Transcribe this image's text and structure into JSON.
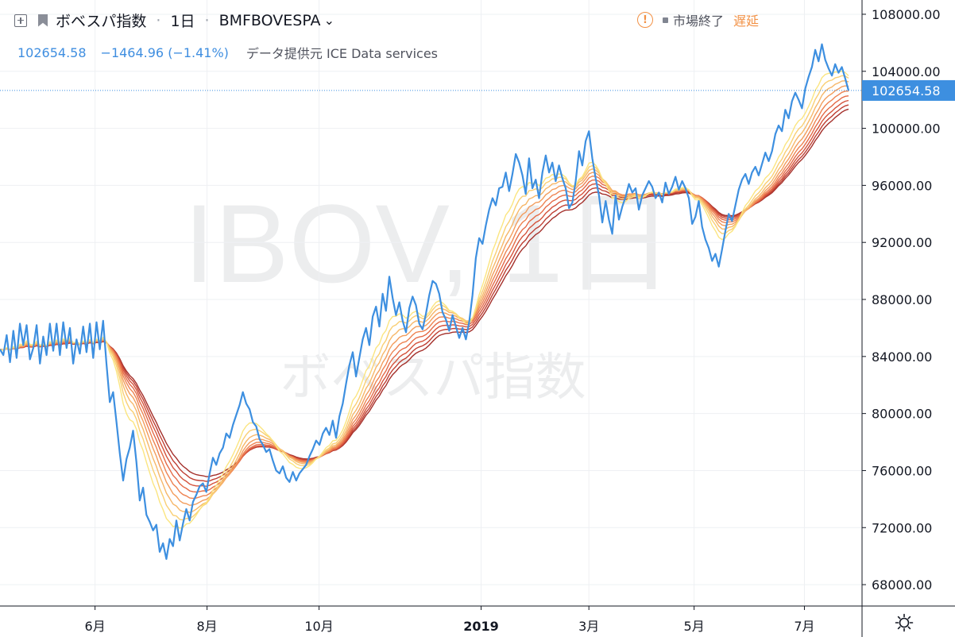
{
  "header": {
    "title": "ボベスパ指数",
    "interval": "1日",
    "exchange": "BMFBOVESPA",
    "price": "102654.58",
    "change": "−1464.96 (−1.41%)",
    "provider": "データ提供元 ICE Data services",
    "status": "市場終了",
    "delay": "遅延"
  },
  "watermark": {
    "symbol": "IBOV, 1日",
    "name": "ボベスパ指数"
  },
  "colors": {
    "price_line": "#3d8fe0",
    "ribbon": [
      "#fbe580",
      "#f9cf74",
      "#f6b769",
      "#f39d5d",
      "#ee8352",
      "#e46a47",
      "#d4533c",
      "#bf3f33",
      "#a4302b"
    ]
  },
  "chart_data": {
    "type": "line",
    "x_ticks": [
      "6月",
      "8月",
      "10月",
      "2019",
      "3月",
      "5月",
      "7月"
    ],
    "y_ticks": [
      "108000.00",
      "104000.00",
      "100000.00",
      "96000.00",
      "92000.00",
      "88000.00",
      "84000.00",
      "80000.00",
      "76000.00",
      "72000.00",
      "68000.00"
    ],
    "ylim": [
      66500,
      109000
    ],
    "last_price_label": "102654.58",
    "last_price": 102654.58,
    "series": [
      {
        "values": [
          84500,
          84100,
          85500,
          83600,
          85800,
          83900,
          86300,
          84800,
          86200,
          83800,
          84600,
          86200,
          83500,
          85400,
          84100,
          86300,
          84400,
          86300,
          84100,
          86400,
          84600,
          86000,
          83500,
          85200,
          84200,
          86100,
          84300,
          86300,
          83900,
          86400,
          84500,
          86500,
          83500,
          80800,
          81500,
          79400,
          77200,
          75300,
          76800,
          77600,
          78800,
          76600,
          73900,
          74800,
          72900,
          72400,
          71800,
          72200,
          70300,
          70900,
          69800,
          71200,
          70700,
          72500,
          71100,
          72300,
          73300,
          72500,
          73800,
          74300,
          74900,
          75100,
          74500,
          75800,
          76900,
          76400,
          77200,
          77600,
          78600,
          78300,
          79200,
          79900,
          80600,
          81500,
          80700,
          80300,
          79400,
          79100,
          78200,
          77800,
          77300,
          77500,
          76700,
          76000,
          75800,
          76300,
          75500,
          75200,
          75900,
          75300,
          75800,
          76100,
          76400,
          77000,
          77500,
          78100,
          77800,
          78600,
          79000,
          78500,
          79500,
          78300,
          79800,
          80700,
          82100,
          83400,
          84300,
          82600,
          83900,
          85200,
          86000,
          84800,
          86800,
          87500,
          86100,
          88400,
          87200,
          89600,
          88100,
          86900,
          87800,
          86500,
          85700,
          87400,
          88200,
          87600,
          86300,
          85900,
          87000,
          88300,
          89300,
          89100,
          88400,
          87100,
          86600,
          85800,
          86900,
          86100,
          85300,
          86000,
          85200,
          86400,
          88300,
          90900,
          92300,
          91900,
          93200,
          94300,
          95100,
          94600,
          95800,
          95900,
          96900,
          95600,
          96800,
          98200,
          97600,
          96700,
          95400,
          97900,
          95800,
          96400,
          95100,
          96900,
          98100,
          96900,
          97600,
          96300,
          97400,
          96500,
          95800,
          94400,
          94800,
          96300,
          98400,
          97400,
          99100,
          99800,
          97900,
          96500,
          95300,
          93400,
          94900,
          93600,
          92600,
          95300,
          93600,
          94500,
          95200,
          96100,
          95500,
          95800,
          94300,
          95300,
          95800,
          96300,
          95900,
          95100,
          95500,
          94800,
          96200,
          95400,
          95900,
          96600,
          95700,
          96300,
          95800,
          95100,
          93300,
          93800,
          94900,
          93100,
          92200,
          91600,
          90700,
          91200,
          90300,
          91500,
          92800,
          94000,
          93500,
          94600,
          95700,
          96400,
          96800,
          96100,
          96900,
          97300,
          96700,
          97500,
          98300,
          97700,
          98400,
          99600,
          100200,
          99800,
          101300,
          100700,
          101900,
          102500,
          102000,
          101400,
          102800,
          103600,
          104300,
          105500,
          104700,
          105900,
          104800,
          104200,
          103700,
          104500,
          103900,
          104300,
          103500,
          102654.58
        ]
      }
    ]
  },
  "settings_icon": "gear-icon"
}
